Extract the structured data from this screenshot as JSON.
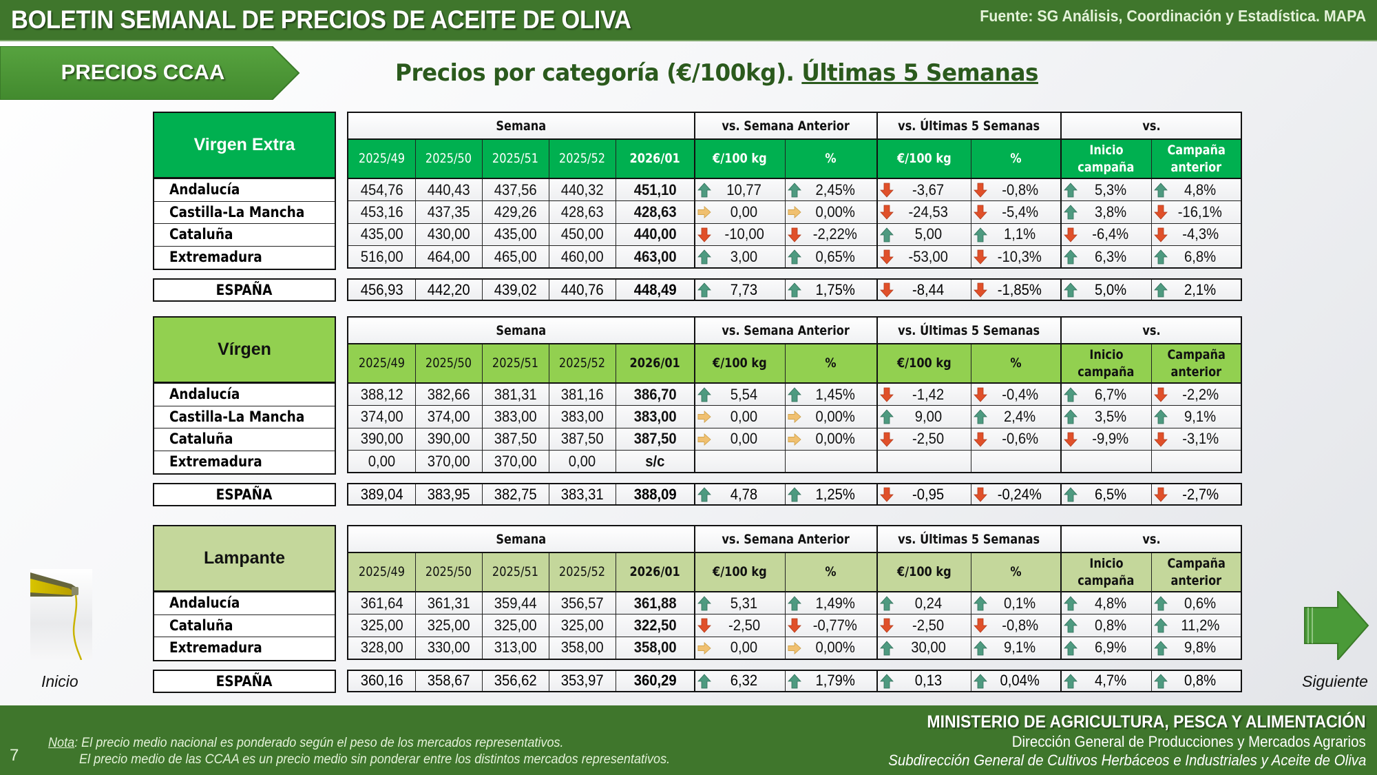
{
  "header": {
    "title": "BOLETIN SEMANAL DE PRECIOS DE ACEITE DE OLIVA",
    "source": "Fuente: SG Análisis, Coordinación y Estadística. MAPA"
  },
  "section_tag": "PRECIOS CCAA",
  "subtitle": {
    "main": "Precios por categoría (€/100kg). ",
    "underlined": "Últimas 5 Semanas"
  },
  "column_groups": {
    "semana": "Semana",
    "vs_semana_anterior": "vs. Semana Anterior",
    "vs_ultimas_5": "vs. Últimas 5 Semanas",
    "vs": "vs."
  },
  "columns": {
    "weeks": [
      "2025/49",
      "2025/50",
      "2025/51",
      "2025/52",
      "2026/01"
    ],
    "eur": "€/100 kg",
    "pct": "%",
    "inicio_l1": "Inicio",
    "inicio_l2": "campaña",
    "campana_l1": "Campaña",
    "campana_l2": "anterior"
  },
  "colors": {
    "virgen_extra": "#00b050",
    "virgen": "#92d050",
    "lampante": "#c4d79b",
    "arrow_up": "#4e9a80",
    "arrow_down": "#e0502a",
    "arrow_flat": "#f0c070",
    "brand_green": "#3f762c"
  },
  "tables": [
    {
      "category": "Virgen Extra",
      "rows": [
        {
          "region": "Andalucía",
          "weeks": [
            "454,76",
            "440,43",
            "437,56",
            "440,32",
            "451,10"
          ],
          "changes": [
            {
              "v": "10,77",
              "d": "up"
            },
            {
              "v": "2,45%",
              "d": "up"
            },
            {
              "v": "-3,67",
              "d": "down"
            },
            {
              "v": "-0,8%",
              "d": "down"
            },
            {
              "v": "5,3%",
              "d": "up"
            },
            {
              "v": "4,8%",
              "d": "up"
            }
          ]
        },
        {
          "region": "Castilla-La Mancha",
          "weeks": [
            "453,16",
            "437,35",
            "429,26",
            "428,63",
            "428,63"
          ],
          "changes": [
            {
              "v": "0,00",
              "d": "flat"
            },
            {
              "v": "0,00%",
              "d": "flat"
            },
            {
              "v": "-24,53",
              "d": "down"
            },
            {
              "v": "-5,4%",
              "d": "down"
            },
            {
              "v": "3,8%",
              "d": "up"
            },
            {
              "v": "-16,1%",
              "d": "down"
            }
          ]
        },
        {
          "region": "Cataluña",
          "weeks": [
            "435,00",
            "430,00",
            "435,00",
            "450,00",
            "440,00"
          ],
          "changes": [
            {
              "v": "-10,00",
              "d": "down"
            },
            {
              "v": "-2,22%",
              "d": "down"
            },
            {
              "v": "5,00",
              "d": "up"
            },
            {
              "v": "1,1%",
              "d": "up"
            },
            {
              "v": "-6,4%",
              "d": "down"
            },
            {
              "v": "-4,3%",
              "d": "down"
            }
          ]
        },
        {
          "region": "Extremadura",
          "weeks": [
            "516,00",
            "464,00",
            "465,00",
            "460,00",
            "463,00"
          ],
          "changes": [
            {
              "v": "3,00",
              "d": "up"
            },
            {
              "v": "0,65%",
              "d": "up"
            },
            {
              "v": "-53,00",
              "d": "down"
            },
            {
              "v": "-10,3%",
              "d": "down"
            },
            {
              "v": "6,3%",
              "d": "up"
            },
            {
              "v": "6,8%",
              "d": "up"
            }
          ]
        }
      ],
      "espana": {
        "region": "ESPAÑA",
        "weeks": [
          "456,93",
          "442,20",
          "439,02",
          "440,76",
          "448,49"
        ],
        "changes": [
          {
            "v": "7,73",
            "d": "up"
          },
          {
            "v": "1,75%",
            "d": "up"
          },
          {
            "v": "-8,44",
            "d": "down"
          },
          {
            "v": "-1,85%",
            "d": "down"
          },
          {
            "v": "5,0%",
            "d": "up"
          },
          {
            "v": "2,1%",
            "d": "up"
          }
        ]
      }
    },
    {
      "category": "Vírgen",
      "rows": [
        {
          "region": "Andalucía",
          "weeks": [
            "388,12",
            "382,66",
            "381,31",
            "381,16",
            "386,70"
          ],
          "changes": [
            {
              "v": "5,54",
              "d": "up"
            },
            {
              "v": "1,45%",
              "d": "up"
            },
            {
              "v": "-1,42",
              "d": "down"
            },
            {
              "v": "-0,4%",
              "d": "down"
            },
            {
              "v": "6,7%",
              "d": "up"
            },
            {
              "v": "-2,2%",
              "d": "down"
            }
          ]
        },
        {
          "region": "Castilla-La Mancha",
          "weeks": [
            "374,00",
            "374,00",
            "383,00",
            "383,00",
            "383,00"
          ],
          "changes": [
            {
              "v": "0,00",
              "d": "flat"
            },
            {
              "v": "0,00%",
              "d": "flat"
            },
            {
              "v": "9,00",
              "d": "up"
            },
            {
              "v": "2,4%",
              "d": "up"
            },
            {
              "v": "3,5%",
              "d": "up"
            },
            {
              "v": "9,1%",
              "d": "up"
            }
          ]
        },
        {
          "region": "Cataluña",
          "weeks": [
            "390,00",
            "390,00",
            "387,50",
            "387,50",
            "387,50"
          ],
          "changes": [
            {
              "v": "0,00",
              "d": "flat"
            },
            {
              "v": "0,00%",
              "d": "flat"
            },
            {
              "v": "-2,50",
              "d": "down"
            },
            {
              "v": "-0,6%",
              "d": "down"
            },
            {
              "v": "-9,9%",
              "d": "down"
            },
            {
              "v": "-3,1%",
              "d": "down"
            }
          ]
        },
        {
          "region": "Extremadura",
          "weeks": [
            "0,00",
            "370,00",
            "370,00",
            "0,00",
            "s/c"
          ],
          "changes": [
            {
              "v": "",
              "d": ""
            },
            {
              "v": "",
              "d": ""
            },
            {
              "v": "",
              "d": ""
            },
            {
              "v": "",
              "d": ""
            },
            {
              "v": "",
              "d": ""
            },
            {
              "v": "",
              "d": ""
            }
          ]
        }
      ],
      "espana": {
        "region": "ESPAÑA",
        "weeks": [
          "389,04",
          "383,95",
          "382,75",
          "383,31",
          "388,09"
        ],
        "changes": [
          {
            "v": "4,78",
            "d": "up"
          },
          {
            "v": "1,25%",
            "d": "up"
          },
          {
            "v": "-0,95",
            "d": "down"
          },
          {
            "v": "-0,24%",
            "d": "down"
          },
          {
            "v": "6,5%",
            "d": "up"
          },
          {
            "v": "-2,7%",
            "d": "down"
          }
        ]
      }
    },
    {
      "category": "Lampante",
      "rows": [
        {
          "region": "Andalucía",
          "weeks": [
            "361,64",
            "361,31",
            "359,44",
            "356,57",
            "361,88"
          ],
          "changes": [
            {
              "v": "5,31",
              "d": "up"
            },
            {
              "v": "1,49%",
              "d": "up"
            },
            {
              "v": "0,24",
              "d": "up"
            },
            {
              "v": "0,1%",
              "d": "up"
            },
            {
              "v": "4,8%",
              "d": "up"
            },
            {
              "v": "0,6%",
              "d": "up"
            }
          ]
        },
        {
          "region": "Cataluña",
          "weeks": [
            "325,00",
            "325,00",
            "325,00",
            "325,00",
            "322,50"
          ],
          "changes": [
            {
              "v": "-2,50",
              "d": "down"
            },
            {
              "v": "-0,77%",
              "d": "down"
            },
            {
              "v": "-2,50",
              "d": "down"
            },
            {
              "v": "-0,8%",
              "d": "down"
            },
            {
              "v": "0,8%",
              "d": "up"
            },
            {
              "v": "11,2%",
              "d": "up"
            }
          ]
        },
        {
          "region": "Extremadura",
          "weeks": [
            "328,00",
            "330,00",
            "313,00",
            "358,00",
            "358,00"
          ],
          "changes": [
            {
              "v": "0,00",
              "d": "flat"
            },
            {
              "v": "0,00%",
              "d": "flat"
            },
            {
              "v": "30,00",
              "d": "up"
            },
            {
              "v": "9,1%",
              "d": "up"
            },
            {
              "v": "6,9%",
              "d": "up"
            },
            {
              "v": "9,8%",
              "d": "up"
            }
          ]
        }
      ],
      "espana": {
        "region": "ESPAÑA",
        "weeks": [
          "360,16",
          "358,67",
          "356,62",
          "353,97",
          "360,29"
        ],
        "changes": [
          {
            "v": "6,32",
            "d": "up"
          },
          {
            "v": "1,79%",
            "d": "up"
          },
          {
            "v": "0,13",
            "d": "up"
          },
          {
            "v": "0,04%",
            "d": "up"
          },
          {
            "v": "4,7%",
            "d": "up"
          },
          {
            "v": "0,8%",
            "d": "up"
          }
        ]
      }
    }
  ],
  "nav": {
    "home_label": "Inicio",
    "next_label": "Siguiente"
  },
  "footer": {
    "page_number": "7",
    "note_label": "Nota",
    "note_line1": ": El precio medio nacional es ponderado según el peso de los mercados representativos.",
    "note_line2": "El precio medio de las CCAA es un precio medio sin ponderar entre los distintos mercados representativos.",
    "ministry": "MINISTERIO DE AGRICULTURA, PESCA Y ALIMENTACIÓN",
    "directorate": "Dirección General de Producciones y Mercados Agrarios",
    "subdirectorate": "Subdirección General de Cultivos Herbáceos e Industriales y Aceite de Oliva"
  }
}
